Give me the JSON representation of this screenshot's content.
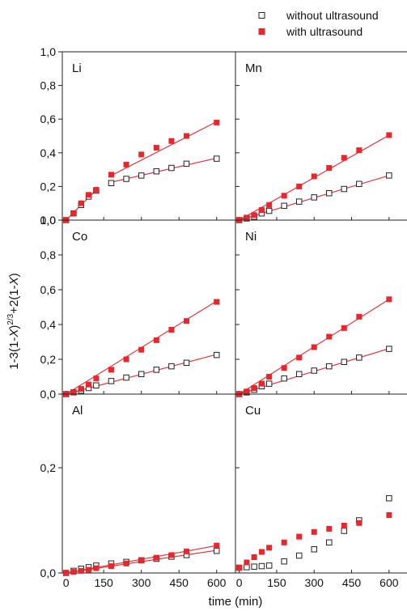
{
  "chart_data": {
    "type": "scatter",
    "xlabel": "time (min)",
    "ylabel_parts": [
      "1-3(1-",
      "X",
      ")",
      "2/3",
      "+2(1-",
      "X",
      ")"
    ],
    "colors": {
      "without": "#222222",
      "with": "#e8262b"
    },
    "legend": {
      "placement": "top-right",
      "entries": [
        {
          "series": "without",
          "label": "without ultrasound",
          "marker": "open-square"
        },
        {
          "series": "with",
          "label": "with ultrasound",
          "marker": "filled-square"
        }
      ]
    },
    "x_ticks": [
      0,
      150,
      300,
      450,
      600
    ],
    "x_tick_labels": [
      "0",
      "150",
      "300",
      "450",
      "600"
    ],
    "x_tick_labels_right": [
      "0",
      "150",
      "300",
      "450",
      "600"
    ],
    "panels": [
      {
        "label": "Li",
        "xlim": [
          -15,
          675
        ],
        "ylim": [
          0,
          1.0
        ],
        "y_ticks": [
          0,
          0.2,
          0.4,
          0.6,
          0.8,
          1.0
        ],
        "y_tick_labels": [
          "0,0",
          "0,2",
          "0,4",
          "0,6",
          "0,8",
          "1,0"
        ],
        "without": {
          "x": [
            0,
            30,
            60,
            90,
            120,
            180,
            240,
            300,
            360,
            420,
            480,
            600
          ],
          "y": [
            0.0,
            0.04,
            0.09,
            0.14,
            0.175,
            0.22,
            0.245,
            0.265,
            0.29,
            0.31,
            0.335,
            0.365
          ]
        },
        "with": {
          "x": [
            0,
            30,
            60,
            90,
            120,
            180,
            240,
            300,
            360,
            420,
            480,
            600
          ],
          "y": [
            0.0,
            0.04,
            0.1,
            0.15,
            0.18,
            0.27,
            0.33,
            0.39,
            0.43,
            0.47,
            0.5,
            0.58
          ]
        },
        "fits": [
          {
            "series": "with",
            "x": [
              0,
              120
            ],
            "y": [
              0.0,
              0.18
            ]
          },
          {
            "series": "with",
            "x": [
              180,
              600
            ],
            "y": [
              0.225,
              0.368
            ]
          },
          {
            "series": "with",
            "x": [
              180,
              600
            ],
            "y": [
              0.265,
              0.585
            ]
          }
        ]
      },
      {
        "label": "Mn",
        "xlim": [
          -15,
          675
        ],
        "ylim": [
          0,
          1.0
        ],
        "y_ticks": [
          0,
          0.2,
          0.4,
          0.6,
          0.8,
          1.0
        ],
        "y_tick_labels": [],
        "without": {
          "x": [
            0,
            30,
            60,
            90,
            120,
            180,
            240,
            300,
            360,
            420,
            480,
            600
          ],
          "y": [
            0.0,
            0.01,
            0.02,
            0.04,
            0.055,
            0.085,
            0.11,
            0.135,
            0.16,
            0.185,
            0.215,
            0.265
          ]
        },
        "with": {
          "x": [
            0,
            30,
            60,
            90,
            120,
            180,
            240,
            300,
            360,
            420,
            480,
            600
          ],
          "y": [
            0.0,
            0.015,
            0.03,
            0.06,
            0.09,
            0.145,
            0.2,
            0.26,
            0.31,
            0.37,
            0.415,
            0.505
          ]
        },
        "fits": [
          {
            "series": "with",
            "x": [
              0,
              600
            ],
            "y": [
              0.0,
              0.265
            ]
          },
          {
            "series": "with",
            "x": [
              0,
              600
            ],
            "y": [
              0.0,
              0.505
            ]
          }
        ]
      },
      {
        "label": "Co",
        "xlim": [
          -15,
          675
        ],
        "ylim": [
          0,
          1.0
        ],
        "y_ticks": [
          0,
          0.2,
          0.4,
          0.6,
          0.8,
          1.0
        ],
        "y_tick_labels": [
          "0,0",
          "0,2",
          "0,4",
          "0,6",
          "0,8",
          "1,0"
        ],
        "without": {
          "x": [
            0,
            30,
            60,
            90,
            120,
            180,
            240,
            300,
            360,
            420,
            480,
            600
          ],
          "y": [
            0.0,
            0.01,
            0.02,
            0.035,
            0.05,
            0.075,
            0.095,
            0.115,
            0.14,
            0.16,
            0.18,
            0.225
          ]
        },
        "with": {
          "x": [
            0,
            30,
            60,
            90,
            120,
            180,
            240,
            300,
            360,
            420,
            480,
            600
          ],
          "y": [
            0.0,
            0.01,
            0.03,
            0.055,
            0.09,
            0.14,
            0.2,
            0.255,
            0.31,
            0.37,
            0.42,
            0.53
          ]
        },
        "fits": [
          {
            "series": "with",
            "x": [
              0,
              600
            ],
            "y": [
              0.0,
              0.228
            ]
          },
          {
            "series": "with",
            "x": [
              0,
              600
            ],
            "y": [
              0.0,
              0.535
            ]
          }
        ]
      },
      {
        "label": "Ni",
        "xlim": [
          -15,
          675
        ],
        "ylim": [
          0,
          1.0
        ],
        "y_ticks": [
          0,
          0.2,
          0.4,
          0.6,
          0.8,
          1.0
        ],
        "y_tick_labels": [],
        "without": {
          "x": [
            0,
            30,
            60,
            90,
            120,
            180,
            240,
            300,
            360,
            420,
            480,
            600
          ],
          "y": [
            0.0,
            0.01,
            0.025,
            0.045,
            0.06,
            0.09,
            0.115,
            0.135,
            0.16,
            0.185,
            0.21,
            0.26
          ]
        },
        "with": {
          "x": [
            0,
            30,
            60,
            90,
            120,
            180,
            240,
            300,
            360,
            420,
            480,
            600
          ],
          "y": [
            0.0,
            0.015,
            0.035,
            0.06,
            0.1,
            0.15,
            0.21,
            0.27,
            0.33,
            0.38,
            0.445,
            0.545
          ]
        },
        "fits": [
          {
            "series": "with",
            "x": [
              0,
              600
            ],
            "y": [
              0.0,
              0.262
            ]
          },
          {
            "series": "with",
            "x": [
              0,
              600
            ],
            "y": [
              0.0,
              0.545
            ]
          }
        ]
      },
      {
        "label": "Al",
        "xlim": [
          -15,
          675
        ],
        "ylim": [
          0,
          0.34
        ],
        "y_ticks": [
          0,
          0.2
        ],
        "y_tick_labels": [
          "0,0",
          "0,2"
        ],
        "without": {
          "x": [
            0,
            30,
            60,
            90,
            120,
            180,
            240,
            300,
            360,
            420,
            480,
            600
          ],
          "y": [
            0.0,
            0.004,
            0.008,
            0.011,
            0.014,
            0.018,
            0.021,
            0.024,
            0.027,
            0.031,
            0.034,
            0.042
          ]
        },
        "with": {
          "x": [
            0,
            30,
            60,
            90,
            120,
            180,
            240,
            300,
            360,
            420,
            480,
            600
          ],
          "y": [
            0.0,
            0.002,
            0.004,
            0.006,
            0.009,
            0.013,
            0.018,
            0.024,
            0.029,
            0.034,
            0.041,
            0.052
          ]
        },
        "fits": [
          {
            "series": "without",
            "x": [
              0,
              600
            ],
            "y": [
              0.0,
              0.043
            ]
          },
          {
            "series": "with",
            "x": [
              0,
              600
            ],
            "y": [
              0.0,
              0.052
            ]
          }
        ]
      },
      {
        "label": "Cu",
        "xlim": [
          -15,
          675
        ],
        "ylim": [
          0,
          0.34
        ],
        "y_ticks": [
          0,
          0.2
        ],
        "y_tick_labels": [],
        "without": {
          "x": [
            0,
            30,
            60,
            90,
            120,
            180,
            240,
            300,
            360,
            420,
            480,
            600
          ],
          "y": [
            0.01,
            0.011,
            0.012,
            0.013,
            0.014,
            0.022,
            0.033,
            0.045,
            0.058,
            0.08,
            0.1,
            0.142
          ]
        },
        "with": {
          "x": [
            0,
            30,
            60,
            90,
            120,
            180,
            240,
            300,
            360,
            420,
            480,
            600
          ],
          "y": [
            0.01,
            0.02,
            0.03,
            0.04,
            0.048,
            0.058,
            0.069,
            0.078,
            0.084,
            0.09,
            0.095,
            0.11
          ]
        },
        "fits": []
      }
    ]
  }
}
